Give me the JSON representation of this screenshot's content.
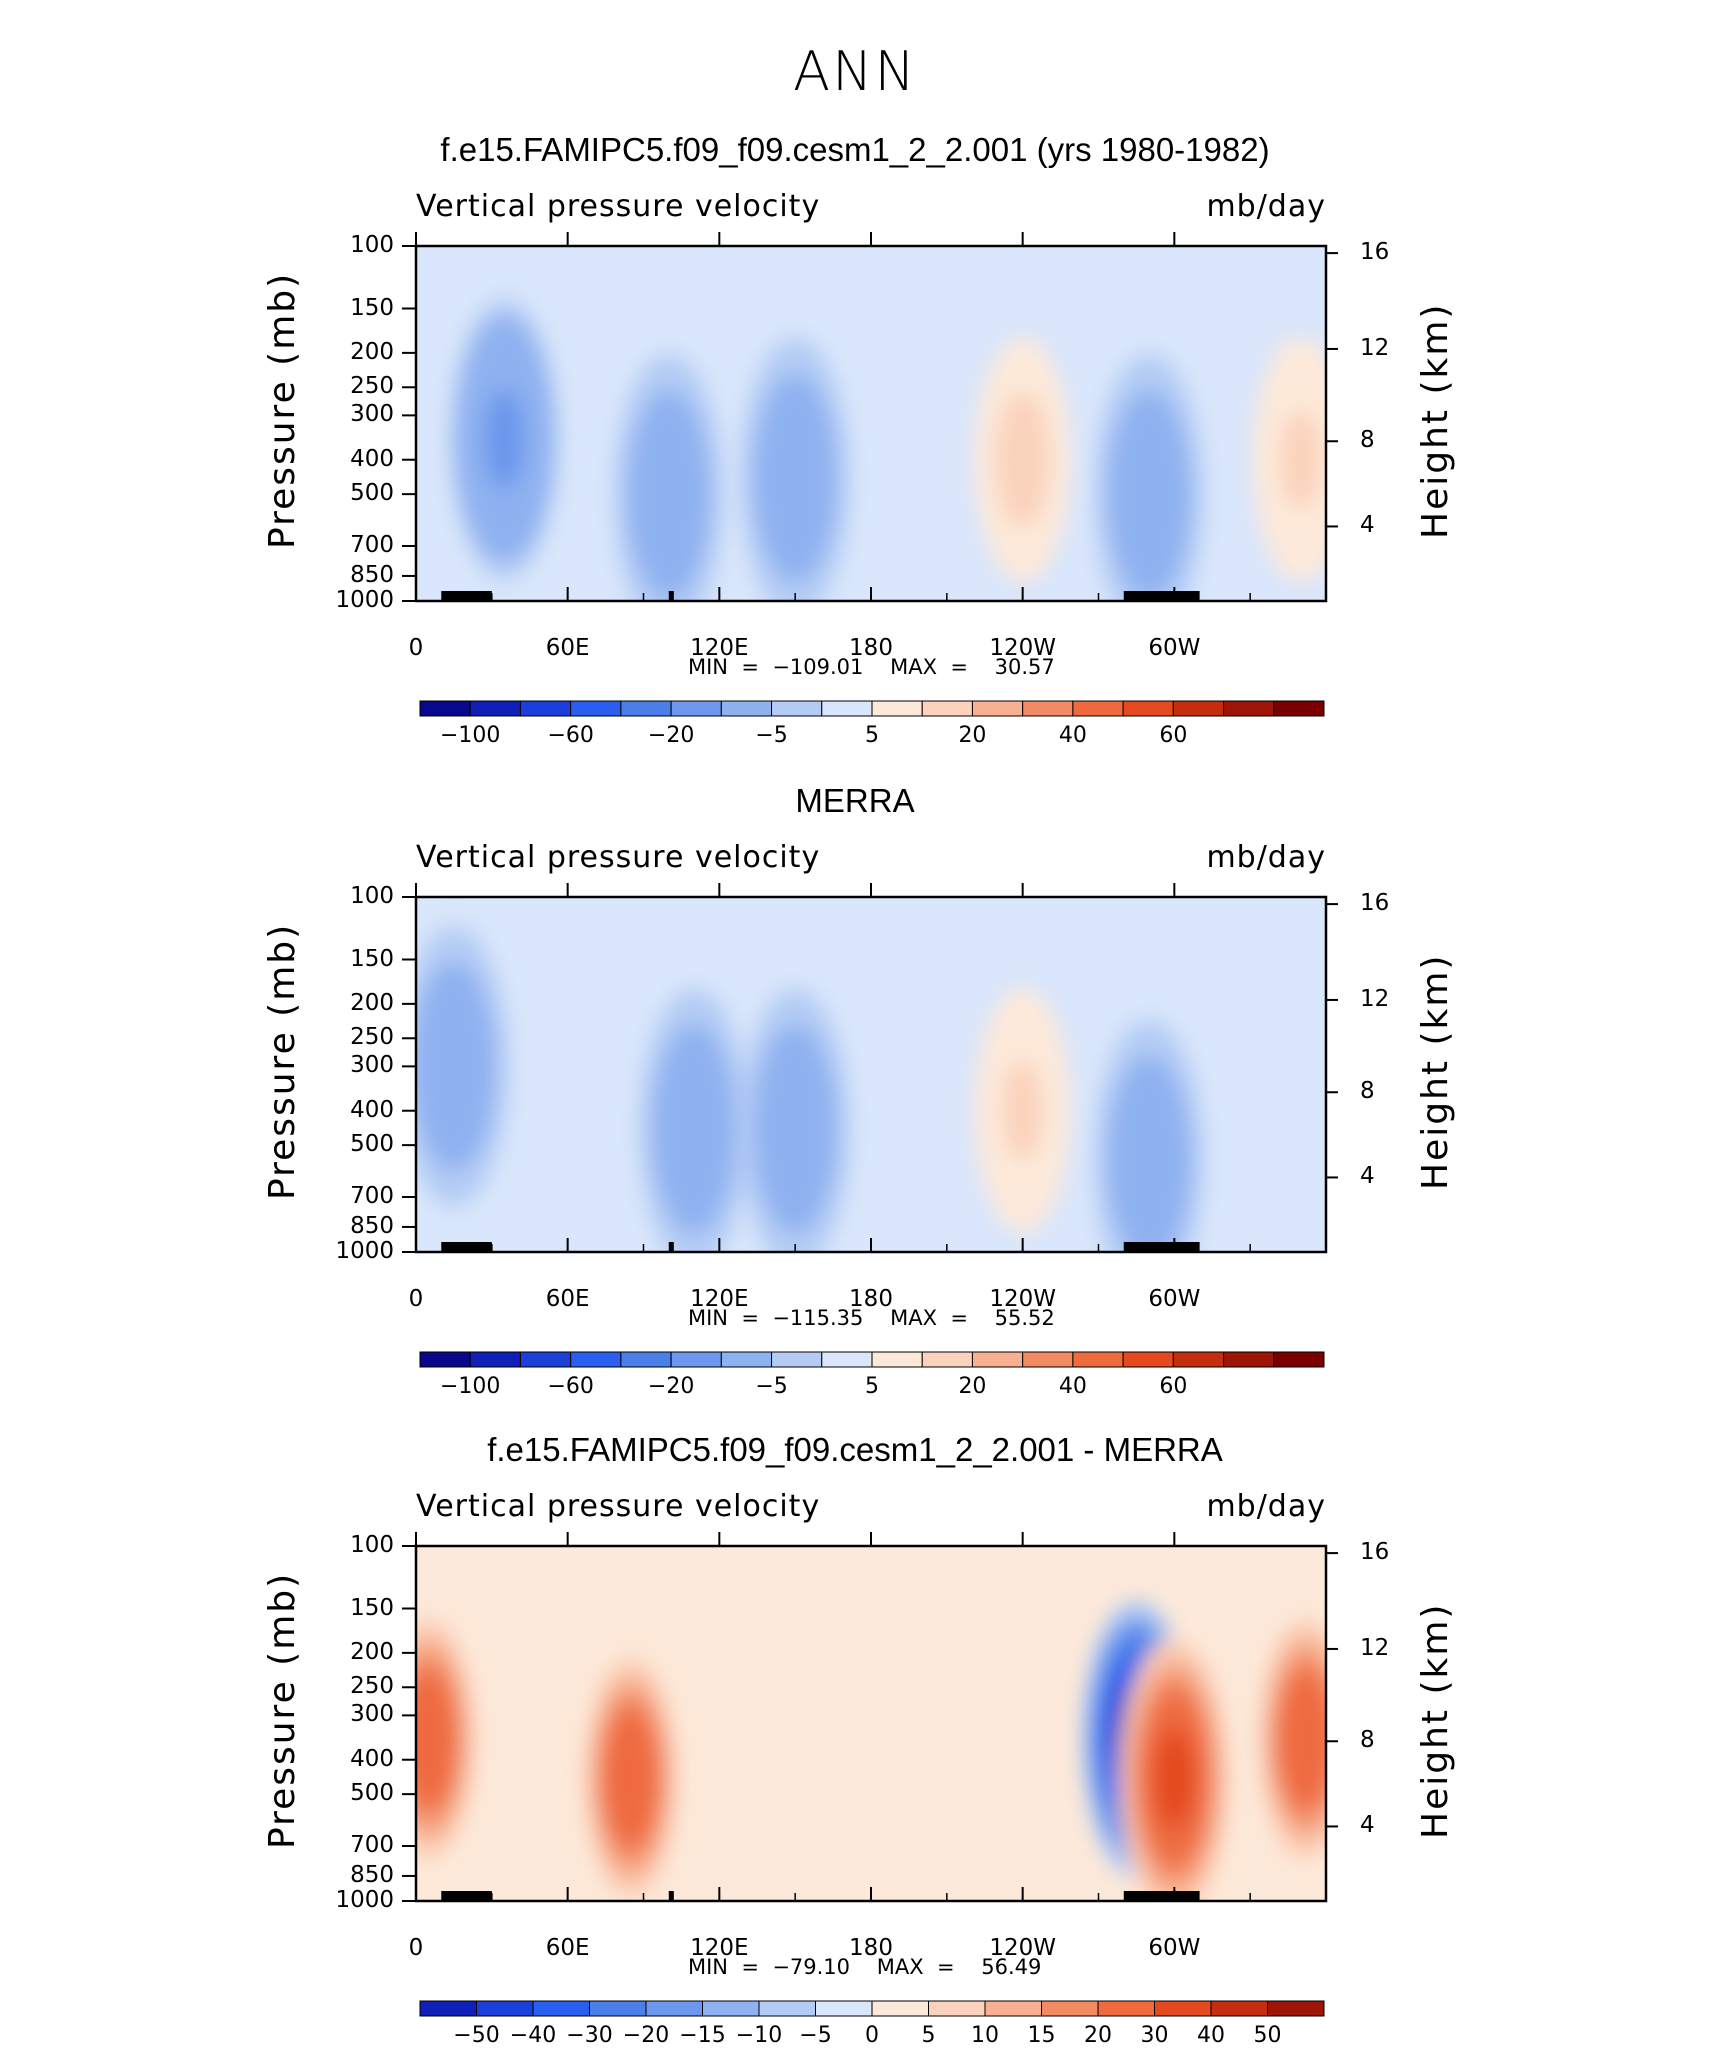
{
  "title": "ANN",
  "colors": {
    "main_levels": [
      "#08088c",
      "#0f1fb8",
      "#1a3fdb",
      "#2a5ef0",
      "#4a7fea",
      "#6b97ec",
      "#8eb1f0",
      "#b4ccf5",
      "#d9e6fb",
      "#fde9d9",
      "#fbd2bb",
      "#f8b090",
      "#f28a64",
      "#ef6a3f",
      "#e4491f",
      "#c62d0e",
      "#9c1507",
      "#7a0000"
    ],
    "diff_levels": [
      "#08088c",
      "#0f1fb8",
      "#1a3fdb",
      "#2a5ef0",
      "#4a7fea",
      "#6b97ec",
      "#8eb1f0",
      "#b4ccf5",
      "#d9e6fb",
      "#fde9d9",
      "#fbd2bb",
      "#f8b090",
      "#f28a64",
      "#ef6a3f",
      "#e4491f",
      "#c62d0e",
      "#9c1507",
      "#7a0000"
    ]
  },
  "panels": [
    {
      "title": "f.e15.FAMIPC5.f09_f09.cesm1_2_2.001 (yrs 1980-1982)",
      "variable": "Vertical pressure velocity",
      "units": "mb/day",
      "minmax": "MIN  =  −109.01    MAX  =    30.57",
      "colorbar_labels": [
        "−100",
        "−60",
        "−20",
        "−5",
        "5",
        "20",
        "40",
        "60"
      ]
    },
    {
      "title": "MERRA",
      "variable": "Vertical pressure velocity",
      "units": "mb/day",
      "minmax": "MIN  =  −115.35    MAX  =    55.52",
      "colorbar_labels": [
        "−100",
        "−60",
        "−20",
        "−5",
        "5",
        "20",
        "40",
        "60"
      ]
    },
    {
      "title": "f.e15.FAMIPC5.f09_f09.cesm1_2_2.001 - MERRA",
      "variable": "Vertical pressure velocity",
      "units": "mb/day",
      "minmax": "MIN  =  −79.10    MAX  =    56.49",
      "colorbar_labels": [
        "−50",
        "−40",
        "−30",
        "−20",
        "−15",
        "−10",
        "−5",
        "0",
        "5",
        "10",
        "15",
        "20",
        "30",
        "40",
        "50"
      ]
    }
  ],
  "chart_data": [
    {
      "type": "heatmap",
      "title": "f.e15.FAMIPC5.f09_f09.cesm1_2_2.001 (yrs 1980-1982)",
      "variable": "Vertical pressure velocity",
      "units": "mb/day",
      "ylabel": "Pressure (mb)",
      "ylabel_right": "Height (km)",
      "y_ticks": [
        "100",
        "150",
        "200",
        "250",
        "300",
        "400",
        "500",
        "700",
        "850",
        "1000"
      ],
      "y_right_ticks": [
        "16",
        "12",
        "8",
        "4"
      ],
      "x_ticks": [
        "0",
        "60E",
        "120E",
        "180",
        "120W",
        "60W"
      ],
      "min": -109.01,
      "max": 30.57,
      "levels": [
        -100,
        -60,
        -20,
        -5,
        5,
        20,
        40,
        60
      ],
      "features": [
        {
          "lon": 35,
          "p": 350,
          "value": -60
        },
        {
          "lon": 100,
          "p": 500,
          "value": -40
        },
        {
          "lon": 150,
          "p": 450,
          "value": -45
        },
        {
          "lon": 240,
          "p": 400,
          "value": 28
        },
        {
          "lon": 290,
          "p": 500,
          "value": -50
        },
        {
          "lon": 350,
          "p": 400,
          "value": 22
        }
      ]
    },
    {
      "type": "heatmap",
      "title": "MERRA",
      "variable": "Vertical pressure velocity",
      "units": "mb/day",
      "ylabel": "Pressure (mb)",
      "ylabel_right": "Height (km)",
      "y_ticks": [
        "100",
        "150",
        "200",
        "250",
        "300",
        "400",
        "500",
        "700",
        "850",
        "1000"
      ],
      "y_right_ticks": [
        "16",
        "12",
        "8",
        "4"
      ],
      "x_ticks": [
        "0",
        "60E",
        "120E",
        "180",
        "120W",
        "60W"
      ],
      "min": -115.35,
      "max": 55.52,
      "levels": [
        -100,
        -60,
        -20,
        -5,
        5,
        20,
        40,
        60
      ],
      "features": [
        {
          "lon": 15,
          "p": 300,
          "value": -40
        },
        {
          "lon": 110,
          "p": 450,
          "value": -45
        },
        {
          "lon": 150,
          "p": 450,
          "value": -40
        },
        {
          "lon": 240,
          "p": 400,
          "value": 22
        },
        {
          "lon": 290,
          "p": 550,
          "value": -45
        }
      ]
    },
    {
      "type": "heatmap",
      "title": "f.e15.FAMIPC5.f09_f09.cesm1_2_2.001 - MERRA",
      "variable": "Vertical pressure velocity",
      "units": "mb/day",
      "ylabel": "Pressure (mb)",
      "ylabel_right": "Height (km)",
      "y_ticks": [
        "100",
        "150",
        "200",
        "250",
        "300",
        "400",
        "500",
        "700",
        "850",
        "1000"
      ],
      "y_right_ticks": [
        "16",
        "12",
        "8",
        "4"
      ],
      "x_ticks": [
        "0",
        "60E",
        "120E",
        "180",
        "120W",
        "60W"
      ],
      "min": -79.1,
      "max": 56.49,
      "levels": [
        -50,
        -40,
        -30,
        -20,
        -15,
        -10,
        -5,
        0,
        5,
        10,
        15,
        20,
        30,
        40,
        50
      ],
      "features": [
        {
          "lon": 5,
          "p": 350,
          "value": 30
        },
        {
          "lon": 85,
          "p": 450,
          "value": 30
        },
        {
          "lon": 285,
          "p": 350,
          "value": -50
        },
        {
          "lon": 300,
          "p": 450,
          "value": 35
        },
        {
          "lon": 352,
          "p": 350,
          "value": 25
        }
      ]
    }
  ]
}
